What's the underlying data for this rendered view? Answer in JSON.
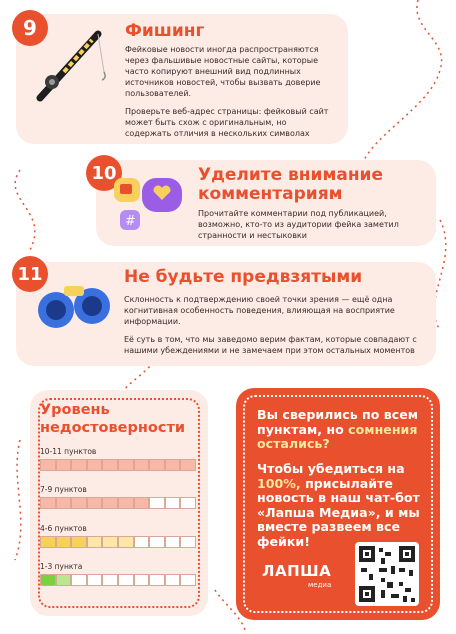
{
  "sections": [
    {
      "number": "9",
      "title": "Фишинг",
      "paragraphs": [
        "Фейковые новости иногда распространяются через фальшивые новостные сайты, которые часто копируют внешний вид подлинных источников новостей, чтобы вызвать доверие пользователей.",
        "Проверьте веб-адрес страницы: фейковый сайт может быть схож с оригинальным, но содержать отличия в нескольких символах"
      ],
      "icon": "fishing-rod-icon"
    },
    {
      "number": "10",
      "title": "Уделите внимание комментариям",
      "paragraphs": [
        "Прочитайте комментарии под публикацией, возможно, кто-то из аудитории фейка заметил странности и нестыковки"
      ],
      "icon": "comments-icon"
    },
    {
      "number": "11",
      "title": "Не будьте предвзятыми",
      "paragraphs": [
        "Склонность к подтверждению своей точки зрения — ещё одна когнитивная особенность поведения, влияющая на восприятие информации.",
        "Её суть в том, что мы заведомо верим фактам, которые совпадают с нашими убеждениями и не замечаем при этом остальных моментов"
      ],
      "icon": "binoculars-icon"
    }
  ],
  "scale": {
    "title": "Уровень недостоверности",
    "levels": [
      {
        "label": "10-11 пунктов",
        "colors": [
          "#f7b8a8",
          "#f7b8a8",
          "#f7b8a8",
          "#f7b8a8",
          "#f7b8a8",
          "#f7b8a8",
          "#f7b8a8",
          "#f7b8a8",
          "#f7b8a8",
          "#f7b8a8"
        ]
      },
      {
        "label": "7-9 пунктов",
        "colors": [
          "#f7b8a8",
          "#f7b8a8",
          "#f7b8a8",
          "#f7b8a8",
          "#f7b8a8",
          "#f7b8a8",
          "#f7b8a8",
          "#ffffff",
          "#ffffff",
          "#ffffff"
        ]
      },
      {
        "label": "4-6 пунктов",
        "colors": [
          "#f7d15b",
          "#f7d15b",
          "#f7d15b",
          "#fce7a6",
          "#fce7a6",
          "#fce7a6",
          "#ffffff",
          "#ffffff",
          "#ffffff",
          "#ffffff"
        ]
      },
      {
        "label": "1-3 пункта",
        "colors": [
          "#7bd23f",
          "#b9e68f",
          "#ffffff",
          "#ffffff",
          "#ffffff",
          "#ffffff",
          "#ffffff",
          "#ffffff",
          "#ffffff",
          "#ffffff"
        ]
      }
    ]
  },
  "cta": {
    "line1": "Вы сверились по всем пунктам, но",
    "line1_hl": "сомнения остались?",
    "line2_a": "Чтобы убедиться на ",
    "line2_hl": "100%,",
    "line2_b": " присылайте новость в наш чат-бот «Лапша Медиа», и мы вместе развеем все фейки!",
    "logo": "ЛАПША",
    "logo_sub": "медиа"
  },
  "colors": {
    "accent": "#e8502e",
    "card": "#fdece6"
  }
}
